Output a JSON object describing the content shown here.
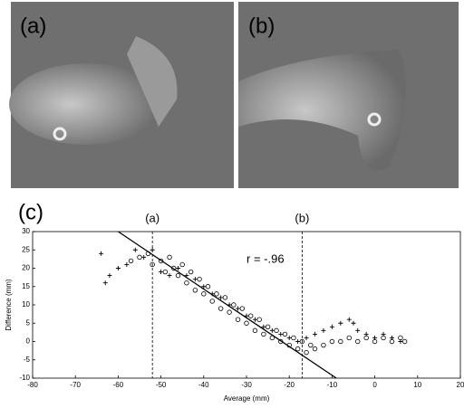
{
  "photo_labels": [
    "(a)",
    "(b)"
  ],
  "chart_data": {
    "type": "scatter",
    "panel_label": "(c)",
    "xlabel": "Average (mm)",
    "ylabel": "Difference (mm)",
    "xlim": [
      -80,
      20
    ],
    "ylim": [
      -10,
      30
    ],
    "xticks": [
      -80,
      -70,
      -60,
      -50,
      -40,
      -30,
      -20,
      -10,
      0,
      10,
      20
    ],
    "yticks": [
      -10,
      -5,
      0,
      5,
      10,
      15,
      20,
      25,
      30
    ],
    "annotation": "r = -.96",
    "vlines": [
      {
        "label": "(a)",
        "x": -52
      },
      {
        "label": "(b)",
        "x": -17
      }
    ],
    "fit_line": {
      "x": [
        -60,
        -9
      ],
      "y": [
        30,
        -10
      ]
    },
    "color": "#000000",
    "series": [
      {
        "marker": "circle",
        "x": [
          -57,
          -55,
          -53,
          -52,
          -50,
          -49,
          -48,
          -47,
          -46,
          -45,
          -44,
          -43,
          -42,
          -41,
          -40,
          -39,
          -38,
          -37,
          -36,
          -35,
          -34,
          -33,
          -32,
          -31,
          -30,
          -29,
          -28,
          -27,
          -26,
          -25,
          -24,
          -23,
          -22,
          -21,
          -20,
          -19,
          -18,
          -17,
          -16,
          -15,
          -14,
          -12,
          -10,
          -8,
          -6,
          -4,
          -2,
          0,
          2,
          4,
          6,
          7
        ],
        "values": [
          22,
          23,
          24,
          21,
          22,
          19,
          23,
          20,
          18,
          21,
          16,
          19,
          14,
          17,
          13,
          15,
          11,
          13,
          9,
          12,
          8,
          10,
          6,
          9,
          5,
          7,
          3,
          6,
          2,
          4,
          1,
          3,
          0,
          2,
          -1,
          1,
          -2,
          0,
          -3,
          -1,
          -2,
          -1,
          0,
          0,
          1,
          0,
          1,
          0,
          1,
          0,
          1,
          0
        ]
      },
      {
        "marker": "plus",
        "x": [
          -64,
          -63,
          -62,
          -60,
          -58,
          -56,
          -54,
          -52,
          -50,
          -48,
          -46,
          -44,
          -42,
          -40,
          -38,
          -36,
          -34,
          -32,
          -30,
          -28,
          -26,
          -24,
          -22,
          -20,
          -18,
          -16,
          -14,
          -12,
          -10,
          -8,
          -6,
          -5,
          -4,
          -2,
          0,
          2,
          4,
          6
        ],
        "values": [
          24,
          16,
          18,
          20,
          21,
          25,
          23,
          25,
          19,
          18,
          20,
          18,
          17,
          15,
          13,
          12,
          10,
          9,
          7,
          6,
          4,
          3,
          2,
          1,
          0,
          1,
          2,
          3,
          4,
          5,
          6,
          5,
          3,
          2,
          1,
          2,
          1,
          0
        ]
      }
    ]
  }
}
